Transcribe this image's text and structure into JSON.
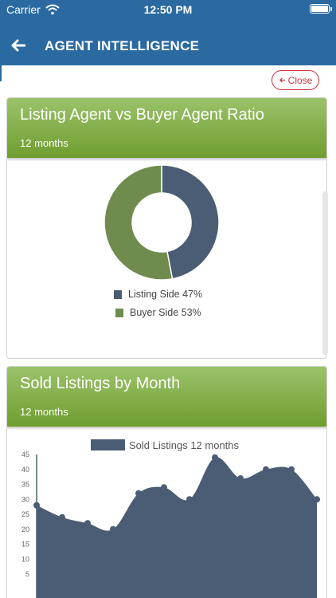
{
  "status": {
    "carrier": "Carrier",
    "time": "12:50 PM"
  },
  "nav": {
    "title": "AGENT INTELLIGENCE"
  },
  "close_button": {
    "label": "Close"
  },
  "colors": {
    "header": "#2a6aa1",
    "card_green": "#7ba83f",
    "series_slate": "#4b5d74",
    "series_green": "#6f8c4e",
    "close_red": "#c9393e"
  },
  "icons": {
    "back": "arrow-left-icon",
    "wifi": "wifi-icon",
    "battery": "battery-icon",
    "close": "arrow-left-small-icon"
  },
  "card1": {
    "title": "Listing Agent vs Buyer Agent Ratio",
    "subtitle": "12 months",
    "legend": [
      {
        "label": "Listing Side 47%",
        "color": "#4b5d74"
      },
      {
        "label": "Buyer Side 53%",
        "color": "#6f8c4e"
      }
    ]
  },
  "card2": {
    "title": "Sold Listings by Month",
    "subtitle": "12 months",
    "legend": "Sold Listings 12 months"
  },
  "chart_data": [
    {
      "type": "pie",
      "labels": [
        "Listing Side",
        "Buyer Side"
      ],
      "values": [
        47,
        53
      ],
      "colors": [
        "#4b5d74",
        "#6f8c4e"
      ],
      "legend": "bottom"
    },
    {
      "type": "area",
      "x": [
        1,
        2,
        3,
        4,
        5,
        6,
        7,
        8,
        9,
        10,
        11,
        12
      ],
      "series": [
        {
          "name": "Sold Listings 12 months",
          "values": [
            28,
            24,
            22,
            20,
            32,
            34,
            30,
            44,
            37,
            40,
            40,
            30
          ],
          "color": "#4b5d74"
        }
      ],
      "yticks": [
        5,
        10,
        15,
        20,
        25,
        30,
        35,
        40,
        45
      ],
      "ylim": [
        0,
        45
      ],
      "legend": "top"
    }
  ]
}
